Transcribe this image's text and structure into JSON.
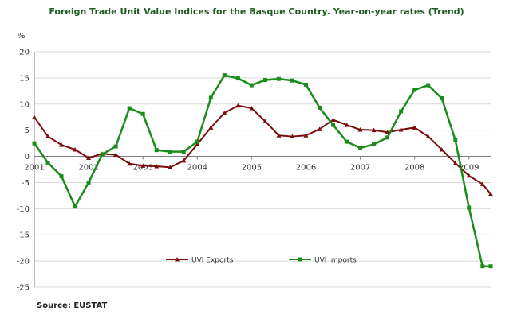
{
  "chart_data": {
    "type": "line",
    "title": "Foreign Trade Unit Value Indices for the Basque Country. Year-on-year rates (Trend)",
    "ylabel": "%",
    "xlabel": "",
    "ylim": [
      -25,
      20
    ],
    "yticks": [
      -25,
      -20,
      -15,
      -10,
      -5,
      0,
      5,
      10,
      15,
      20
    ],
    "xlim": [
      2001.0,
      2009.4
    ],
    "xticks": [
      "2001",
      "2002",
      "2003",
      "2004",
      "2005",
      "2006",
      "2007",
      "2008",
      "2009"
    ],
    "grid": "horizontal",
    "legend_position": "bottom-center",
    "source": "Source: EUSTAT",
    "series": [
      {
        "name": "UVI Exports",
        "color": "#7b0c0c",
        "marker": "triangle",
        "x": [
          2001.0,
          2001.25,
          2001.5,
          2001.75,
          2002.0,
          2002.25,
          2002.5,
          2002.75,
          2003.0,
          2003.25,
          2003.5,
          2003.75,
          2004.0,
          2004.25,
          2004.5,
          2004.75,
          2005.0,
          2005.25,
          2005.5,
          2005.75,
          2006.0,
          2006.25,
          2006.5,
          2006.75,
          2007.0,
          2007.25,
          2007.5,
          2007.75,
          2008.0,
          2008.25,
          2008.5,
          2008.75,
          2009.0,
          2009.25,
          2009.4
        ],
        "values": [
          7.5,
          3.8,
          2.2,
          1.3,
          -0.3,
          0.5,
          0.3,
          -1.4,
          -1.8,
          -1.9,
          -2.1,
          -0.8,
          2.3,
          5.5,
          8.3,
          9.7,
          9.2,
          6.7,
          4.0,
          3.8,
          4.0,
          5.2,
          7.0,
          6.0,
          5.1,
          5.0,
          4.6,
          5.1,
          5.5,
          3.8,
          1.3,
          -1.3,
          -3.7,
          -5.3,
          -7.2
        ]
      },
      {
        "name": "UVI Imports",
        "color": "#1a8c1a",
        "marker": "square",
        "x": [
          2001.0,
          2001.25,
          2001.5,
          2001.75,
          2002.0,
          2002.25,
          2002.5,
          2002.75,
          2003.0,
          2003.25,
          2003.5,
          2003.75,
          2004.0,
          2004.25,
          2004.5,
          2004.75,
          2005.0,
          2005.25,
          2005.5,
          2005.75,
          2006.0,
          2006.25,
          2006.5,
          2006.75,
          2007.0,
          2007.25,
          2007.5,
          2007.75,
          2008.0,
          2008.25,
          2008.5,
          2008.75,
          2009.0,
          2009.25,
          2009.4
        ],
        "values": [
          2.5,
          -1.2,
          -3.8,
          -9.6,
          -5.0,
          0.4,
          1.9,
          9.2,
          8.1,
          1.2,
          0.9,
          0.9,
          2.8,
          11.2,
          15.5,
          14.9,
          13.6,
          14.6,
          14.8,
          14.5,
          13.7,
          9.3,
          6.0,
          2.8,
          1.6,
          2.3,
          3.6,
          8.6,
          12.7,
          13.6,
          11.1,
          3.1,
          -9.8,
          -21.0,
          -21.0
        ]
      }
    ]
  }
}
